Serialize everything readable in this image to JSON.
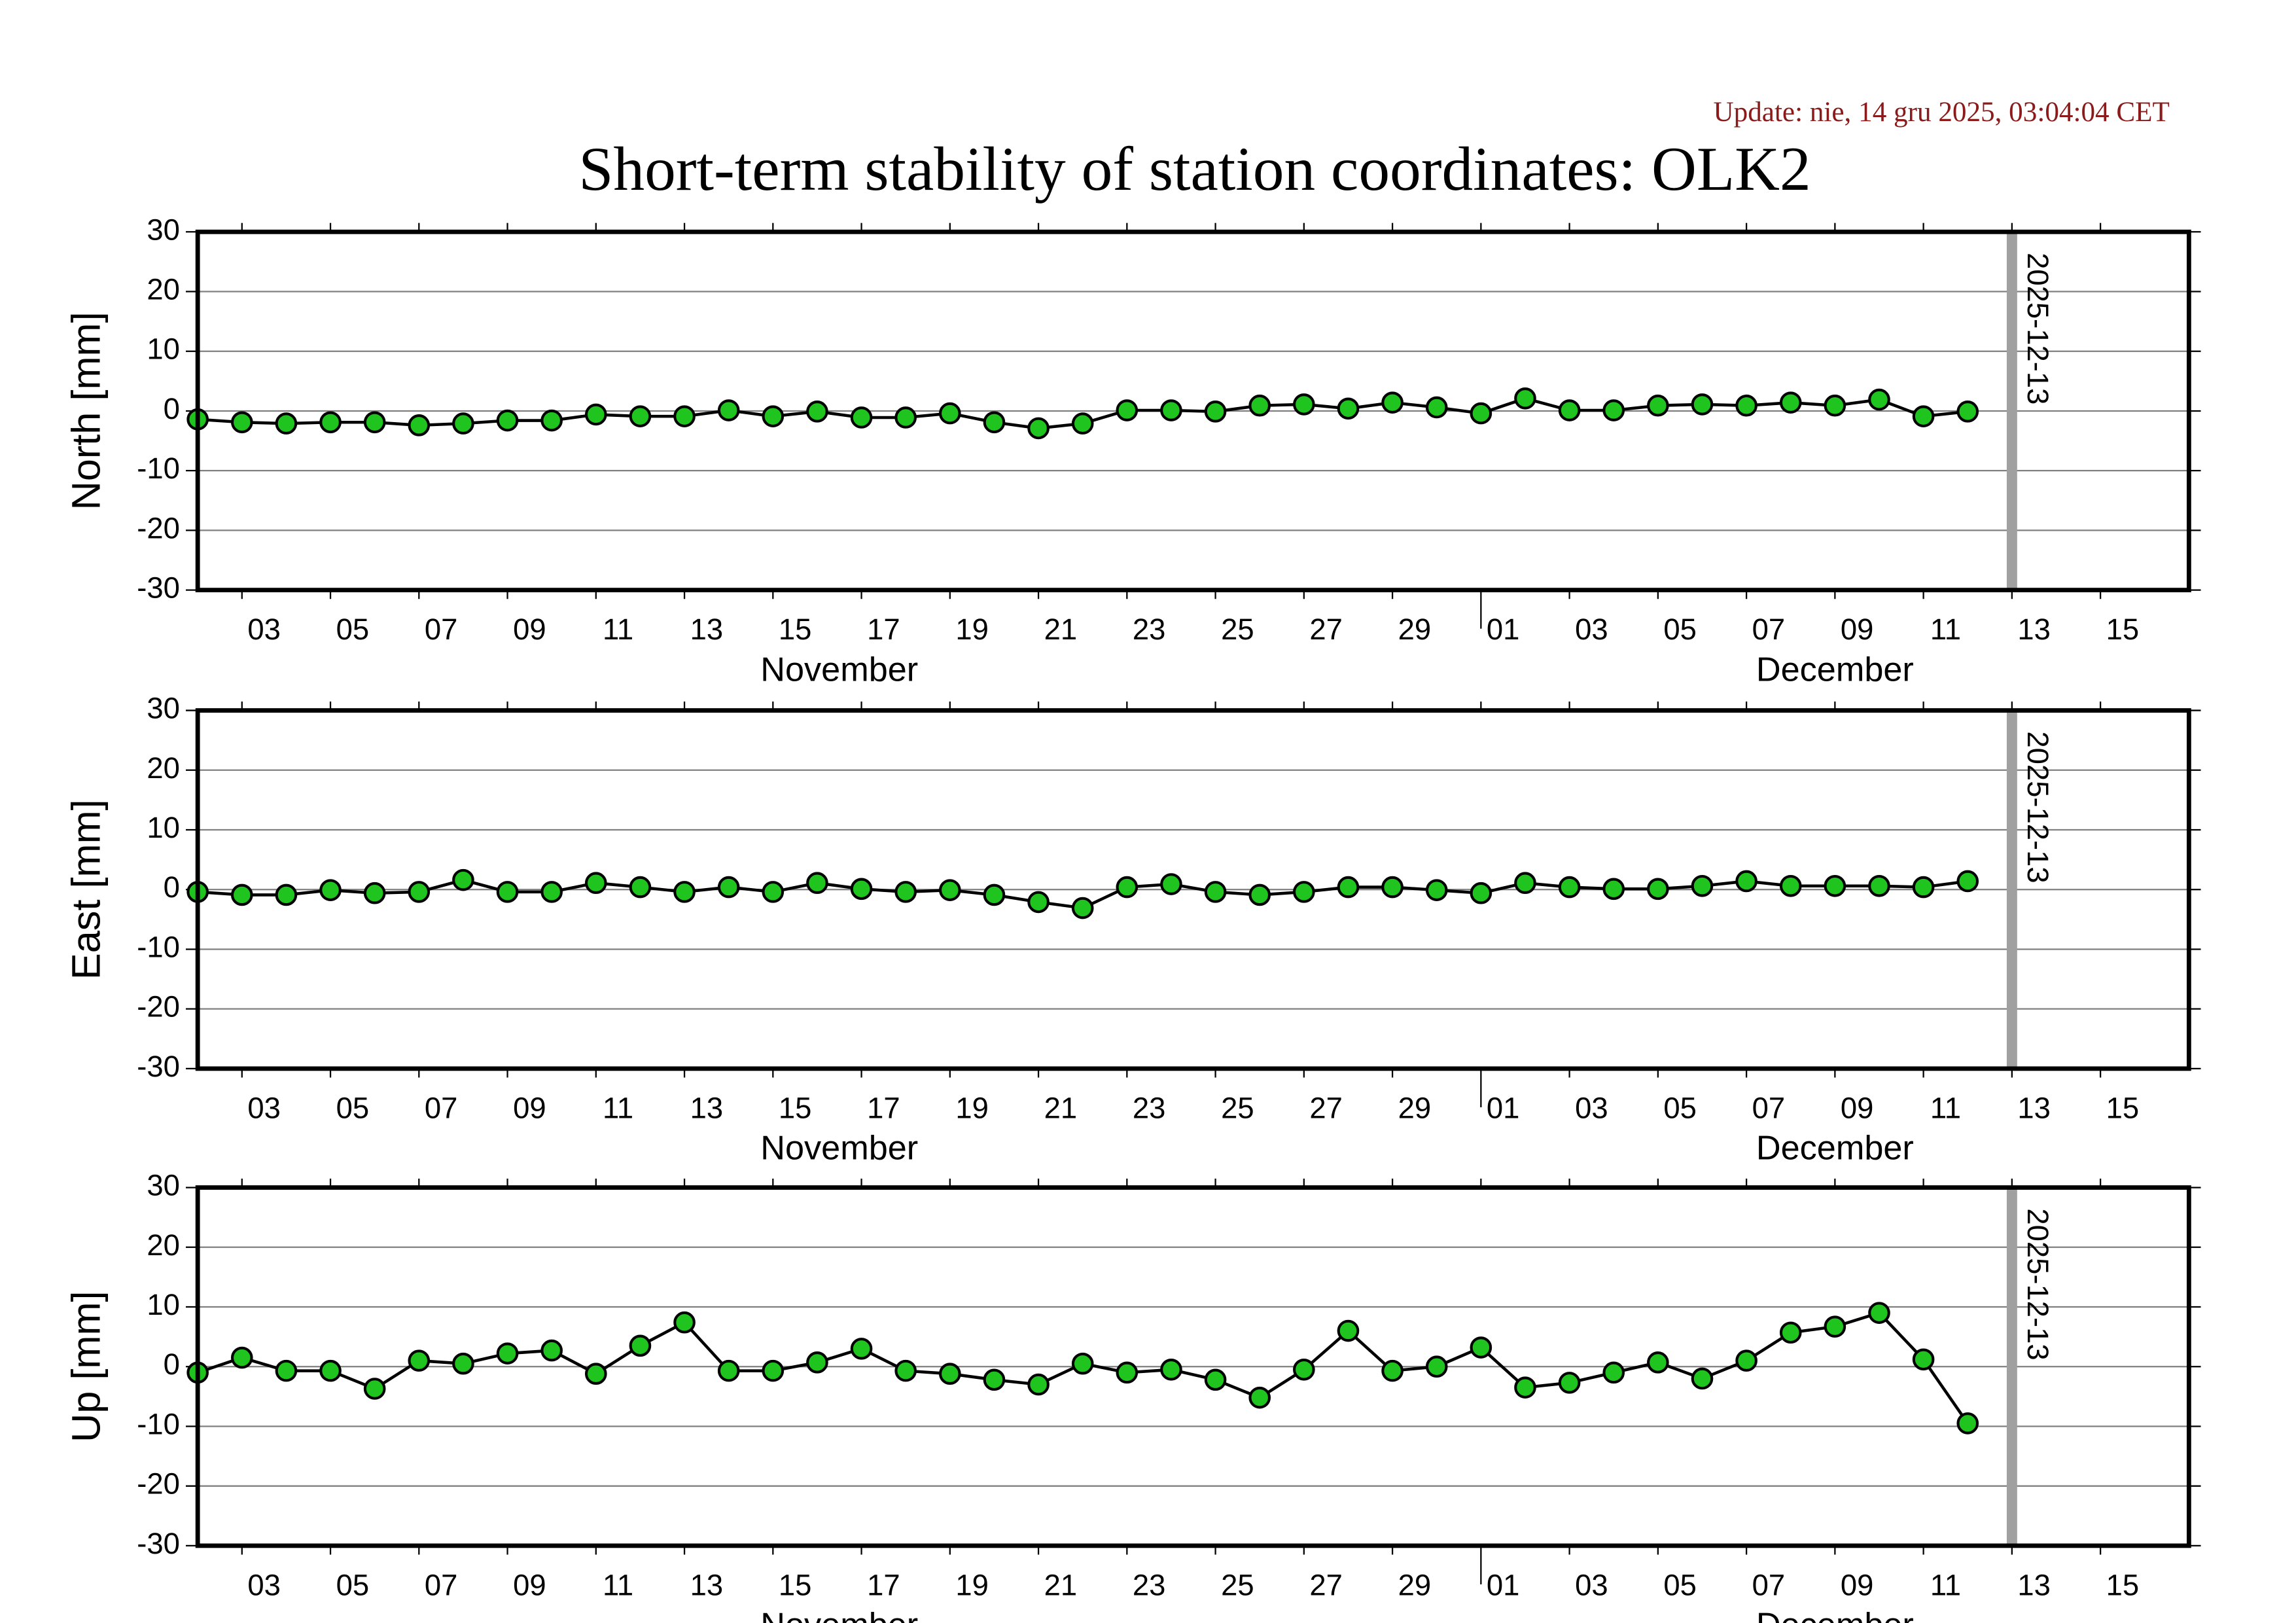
{
  "title": "Short-term stability of station coordinates: OLK2",
  "update": "Update: nie, 14 gru 2025, 03:04:04 CET",
  "chart_data": [
    {
      "type": "line",
      "ylabel": "North [mm]",
      "color": "#1fc41f",
      "line_color": "#000000",
      "x": [
        "2025-11-02",
        "2025-11-03",
        "2025-11-04",
        "2025-11-05",
        "2025-11-06",
        "2025-11-07",
        "2025-11-08",
        "2025-11-09",
        "2025-11-10",
        "2025-11-11",
        "2025-11-12",
        "2025-11-13",
        "2025-11-14",
        "2025-11-15",
        "2025-11-16",
        "2025-11-17",
        "2025-11-18",
        "2025-11-19",
        "2025-11-20",
        "2025-11-21",
        "2025-11-22",
        "2025-11-23",
        "2025-11-24",
        "2025-11-25",
        "2025-11-26",
        "2025-11-27",
        "2025-11-28",
        "2025-11-29",
        "2025-11-30",
        "2025-12-01",
        "2025-12-02",
        "2025-12-03",
        "2025-12-04",
        "2025-12-05",
        "2025-12-06",
        "2025-12-07",
        "2025-12-08",
        "2025-12-09",
        "2025-12-10",
        "2025-12-11",
        "2025-12-12"
      ],
      "values": [
        -1.4,
        -1.9,
        -2.1,
        -1.9,
        -1.9,
        -2.4,
        -2.1,
        -1.6,
        -1.6,
        -0.6,
        -0.9,
        -0.9,
        0.1,
        -0.9,
        -0.1,
        -1.1,
        -1.1,
        -0.4,
        -1.9,
        -2.9,
        -2.1,
        0.1,
        0.1,
        -0.1,
        0.9,
        1.1,
        0.4,
        1.4,
        0.6,
        -0.4,
        2.1,
        0.1,
        0.1,
        0.9,
        1.1,
        0.9,
        1.4,
        0.9,
        1.9,
        -0.9,
        -0.1
      ],
      "xlim": [
        "2025-11-02",
        "2025-12-17"
      ],
      "ylim": [
        -30,
        30
      ],
      "yticks": [
        -30,
        -20,
        -10,
        0,
        10,
        20,
        30
      ],
      "grid": true,
      "xticks": [
        {
          "value": "2025-11-03",
          "label": "03"
        },
        {
          "value": "2025-11-05",
          "label": "05"
        },
        {
          "value": "2025-11-07",
          "label": "07"
        },
        {
          "value": "2025-11-09",
          "label": "09"
        },
        {
          "value": "2025-11-11",
          "label": "11"
        },
        {
          "value": "2025-11-13",
          "label": "13"
        },
        {
          "value": "2025-11-15",
          "label": "15"
        },
        {
          "value": "2025-11-17",
          "label": "17"
        },
        {
          "value": "2025-11-19",
          "label": "19"
        },
        {
          "value": "2025-11-21",
          "label": "21"
        },
        {
          "value": "2025-11-23",
          "label": "23"
        },
        {
          "value": "2025-11-25",
          "label": "25"
        },
        {
          "value": "2025-11-27",
          "label": "27"
        },
        {
          "value": "2025-11-29",
          "label": "29"
        },
        {
          "value": "2025-12-01",
          "label": "01"
        },
        {
          "value": "2025-12-03",
          "label": "03"
        },
        {
          "value": "2025-12-05",
          "label": "05"
        },
        {
          "value": "2025-12-07",
          "label": "07"
        },
        {
          "value": "2025-12-09",
          "label": "09"
        },
        {
          "value": "2025-12-11",
          "label": "11"
        },
        {
          "value": "2025-12-13",
          "label": "13"
        },
        {
          "value": "2025-12-15",
          "label": "15"
        }
      ],
      "months": [
        {
          "value": "2025-11",
          "label": "November"
        },
        {
          "value": "2025-12",
          "label": "December"
        }
      ],
      "annotation": {
        "x": "2025-12-13",
        "text": "2025-12-13",
        "color": "#a0a0a0"
      }
    },
    {
      "type": "line",
      "ylabel": "East [mm]",
      "color": "#1fc41f",
      "line_color": "#000000",
      "x": [
        "2025-11-02",
        "2025-11-03",
        "2025-11-04",
        "2025-11-05",
        "2025-11-06",
        "2025-11-07",
        "2025-11-08",
        "2025-11-09",
        "2025-11-10",
        "2025-11-11",
        "2025-11-12",
        "2025-11-13",
        "2025-11-14",
        "2025-11-15",
        "2025-11-16",
        "2025-11-17",
        "2025-11-18",
        "2025-11-19",
        "2025-11-20",
        "2025-11-21",
        "2025-11-22",
        "2025-11-23",
        "2025-11-24",
        "2025-11-25",
        "2025-11-26",
        "2025-11-27",
        "2025-11-28",
        "2025-11-29",
        "2025-11-30",
        "2025-12-01",
        "2025-12-02",
        "2025-12-03",
        "2025-12-04",
        "2025-12-05",
        "2025-12-06",
        "2025-12-07",
        "2025-12-08",
        "2025-12-09",
        "2025-12-10",
        "2025-12-11",
        "2025-12-12"
      ],
      "values": [
        -0.4,
        -0.9,
        -0.9,
        -0.1,
        -0.6,
        -0.4,
        1.6,
        -0.4,
        -0.4,
        1.1,
        0.4,
        -0.4,
        0.4,
        -0.4,
        1.1,
        0.1,
        -0.4,
        -0.1,
        -0.9,
        -2.1,
        -3.1,
        0.4,
        0.9,
        -0.4,
        -0.9,
        -0.4,
        0.4,
        0.4,
        -0.1,
        -0.6,
        1.1,
        0.4,
        0.1,
        0.1,
        0.6,
        1.4,
        0.6,
        0.6,
        0.6,
        0.4,
        1.4
      ],
      "xlim": [
        "2025-11-02",
        "2025-12-17"
      ],
      "ylim": [
        -30,
        30
      ],
      "yticks": [
        -30,
        -20,
        -10,
        0,
        10,
        20,
        30
      ],
      "grid": true,
      "xticks": [
        {
          "value": "2025-11-03",
          "label": "03"
        },
        {
          "value": "2025-11-05",
          "label": "05"
        },
        {
          "value": "2025-11-07",
          "label": "07"
        },
        {
          "value": "2025-11-09",
          "label": "09"
        },
        {
          "value": "2025-11-11",
          "label": "11"
        },
        {
          "value": "2025-11-13",
          "label": "13"
        },
        {
          "value": "2025-11-15",
          "label": "15"
        },
        {
          "value": "2025-11-17",
          "label": "17"
        },
        {
          "value": "2025-11-19",
          "label": "19"
        },
        {
          "value": "2025-11-21",
          "label": "21"
        },
        {
          "value": "2025-11-23",
          "label": "23"
        },
        {
          "value": "2025-11-25",
          "label": "25"
        },
        {
          "value": "2025-11-27",
          "label": "27"
        },
        {
          "value": "2025-11-29",
          "label": "29"
        },
        {
          "value": "2025-12-01",
          "label": "01"
        },
        {
          "value": "2025-12-03",
          "label": "03"
        },
        {
          "value": "2025-12-05",
          "label": "05"
        },
        {
          "value": "2025-12-07",
          "label": "07"
        },
        {
          "value": "2025-12-09",
          "label": "09"
        },
        {
          "value": "2025-12-11",
          "label": "11"
        },
        {
          "value": "2025-12-13",
          "label": "13"
        },
        {
          "value": "2025-12-15",
          "label": "15"
        }
      ],
      "months": [
        {
          "value": "2025-11",
          "label": "November"
        },
        {
          "value": "2025-12",
          "label": "December"
        }
      ],
      "annotation": {
        "x": "2025-12-13",
        "text": "2025-12-13",
        "color": "#a0a0a0"
      }
    },
    {
      "type": "line",
      "ylabel": "Up [mm]",
      "color": "#1fc41f",
      "line_color": "#000000",
      "x": [
        "2025-11-02",
        "2025-11-03",
        "2025-11-04",
        "2025-11-05",
        "2025-11-06",
        "2025-11-07",
        "2025-11-08",
        "2025-11-09",
        "2025-11-10",
        "2025-11-11",
        "2025-11-12",
        "2025-11-13",
        "2025-11-14",
        "2025-11-15",
        "2025-11-16",
        "2025-11-17",
        "2025-11-18",
        "2025-11-19",
        "2025-11-20",
        "2025-11-21",
        "2025-11-22",
        "2025-11-23",
        "2025-11-24",
        "2025-11-25",
        "2025-11-26",
        "2025-11-27",
        "2025-11-28",
        "2025-11-29",
        "2025-11-30",
        "2025-12-01",
        "2025-12-02",
        "2025-12-03",
        "2025-12-04",
        "2025-12-05",
        "2025-12-06",
        "2025-12-07",
        "2025-12-08",
        "2025-12-09",
        "2025-12-10",
        "2025-12-11",
        "2025-12-12"
      ],
      "values": [
        -1.0,
        1.5,
        -0.7,
        -0.7,
        -3.7,
        1.0,
        0.5,
        2.2,
        2.7,
        -1.2,
        3.5,
        7.4,
        -0.7,
        -0.7,
        0.7,
        3.0,
        -0.7,
        -1.2,
        -2.2,
        -3.0,
        0.5,
        -1.0,
        -0.5,
        -2.2,
        -5.2,
        -0.5,
        6.0,
        -0.7,
        0.0,
        3.2,
        -3.5,
        -2.7,
        -1.0,
        0.7,
        -2.0,
        1.0,
        5.7,
        6.7,
        9.0,
        1.2,
        -9.5
      ],
      "xlim": [
        "2025-11-02",
        "2025-12-17"
      ],
      "ylim": [
        -30,
        30
      ],
      "yticks": [
        -30,
        -20,
        -10,
        0,
        10,
        20,
        30
      ],
      "grid": true,
      "xticks": [
        {
          "value": "2025-11-03",
          "label": "03"
        },
        {
          "value": "2025-11-05",
          "label": "05"
        },
        {
          "value": "2025-11-07",
          "label": "07"
        },
        {
          "value": "2025-11-09",
          "label": "09"
        },
        {
          "value": "2025-11-11",
          "label": "11"
        },
        {
          "value": "2025-11-13",
          "label": "13"
        },
        {
          "value": "2025-11-15",
          "label": "15"
        },
        {
          "value": "2025-11-17",
          "label": "17"
        },
        {
          "value": "2025-11-19",
          "label": "19"
        },
        {
          "value": "2025-11-21",
          "label": "21"
        },
        {
          "value": "2025-11-23",
          "label": "23"
        },
        {
          "value": "2025-11-25",
          "label": "25"
        },
        {
          "value": "2025-11-27",
          "label": "27"
        },
        {
          "value": "2025-11-29",
          "label": "29"
        },
        {
          "value": "2025-12-01",
          "label": "01"
        },
        {
          "value": "2025-12-03",
          "label": "03"
        },
        {
          "value": "2025-12-05",
          "label": "05"
        },
        {
          "value": "2025-12-07",
          "label": "07"
        },
        {
          "value": "2025-12-09",
          "label": "09"
        },
        {
          "value": "2025-12-11",
          "label": "11"
        },
        {
          "value": "2025-12-13",
          "label": "13"
        },
        {
          "value": "2025-12-15",
          "label": "15"
        }
      ],
      "months": [
        {
          "value": "2025-11",
          "label": "November"
        },
        {
          "value": "2025-12",
          "label": "December"
        }
      ],
      "annotation": {
        "x": "2025-12-13",
        "text": "2025-12-13",
        "color": "#a0a0a0"
      }
    }
  ]
}
